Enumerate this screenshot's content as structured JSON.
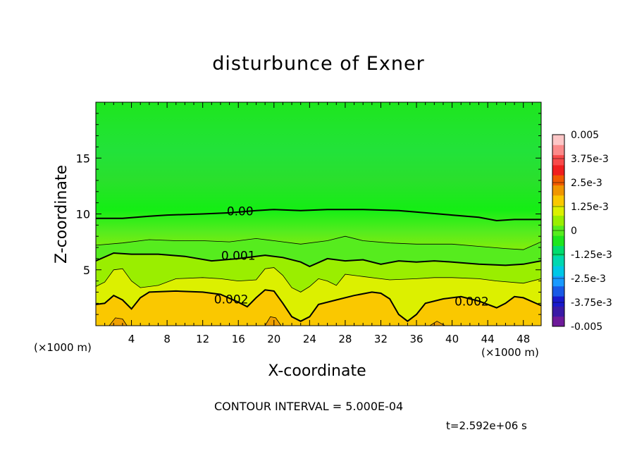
{
  "chart_data": {
    "type": "heatmap",
    "title": "disturbunce of Exner",
    "xlabel": "X-coordinate",
    "ylabel": "Z-coordinate",
    "x_unit_label_left": "(×1000 m)",
    "x_unit_label_right": "(×1000 m)",
    "xlim": [
      0,
      50
    ],
    "ylim": [
      0,
      20
    ],
    "x_ticks": [
      4,
      8,
      12,
      16,
      20,
      24,
      28,
      32,
      36,
      40,
      44,
      48
    ],
    "y_ticks": [
      5,
      10,
      15
    ],
    "contour_interval_text": "CONTOUR INTERVAL = 5.000E-04",
    "time_text": "t=2.592e+06 s",
    "colorbar": {
      "range": [
        -0.005,
        0.005
      ],
      "tick_labels": [
        "0.005",
        "3.75e-3",
        "2.5e-3",
        "1.25e-3",
        "0",
        "-1.25e-3",
        "-2.5e-3",
        "-3.75e-3",
        "-0.005"
      ],
      "colors": [
        "#6e1a9a",
        "#3a1aa6",
        "#1a1acc",
        "#1a5ae6",
        "#1a9aff",
        "#00c8e6",
        "#00d8b0",
        "#00dc6e",
        "#1ee61e",
        "#56ec1e",
        "#9aee00",
        "#dcf000",
        "#fac800",
        "#f09600",
        "#f05a00",
        "#f01e1e",
        "#f84a4a",
        "#fb8a8a",
        "#fdc6c6"
      ]
    },
    "contour_labels": [
      {
        "text": "0.00",
        "x": 16.2,
        "z": 10.2
      },
      {
        "text": "0.001",
        "x": 16.0,
        "z": 6.2
      },
      {
        "text": "0.002",
        "x": 15.2,
        "z": 2.3
      },
      {
        "text": "0.002",
        "x": 42.2,
        "z": 2.1
      }
    ],
    "contours": [
      {
        "level": 0.0,
        "major": true,
        "points": [
          [
            0,
            9.6
          ],
          [
            3,
            9.6
          ],
          [
            6,
            9.8
          ],
          [
            8,
            9.9
          ],
          [
            12,
            10.0
          ],
          [
            15,
            10.1
          ],
          [
            18,
            10.3
          ],
          [
            20,
            10.4
          ],
          [
            23,
            10.3
          ],
          [
            26,
            10.4
          ],
          [
            30,
            10.4
          ],
          [
            34,
            10.3
          ],
          [
            37,
            10.1
          ],
          [
            40,
            9.9
          ],
          [
            43,
            9.7
          ],
          [
            45,
            9.4
          ],
          [
            47,
            9.5
          ],
          [
            50,
            9.5
          ]
        ]
      },
      {
        "level": 0.0005,
        "major": false,
        "points": [
          [
            0,
            7.2
          ],
          [
            3,
            7.4
          ],
          [
            6,
            7.7
          ],
          [
            9,
            7.6
          ],
          [
            12,
            7.6
          ],
          [
            15,
            7.5
          ],
          [
            18,
            7.8
          ],
          [
            20,
            7.6
          ],
          [
            23,
            7.3
          ],
          [
            26,
            7.6
          ],
          [
            28,
            8.0
          ],
          [
            30,
            7.6
          ],
          [
            33,
            7.4
          ],
          [
            36,
            7.3
          ],
          [
            40,
            7.3
          ],
          [
            43,
            7.1
          ],
          [
            46,
            6.9
          ],
          [
            48,
            6.8
          ],
          [
            50,
            7.5
          ]
        ]
      },
      {
        "level": 0.001,
        "major": true,
        "points": [
          [
            0,
            5.8
          ],
          [
            2,
            6.5
          ],
          [
            4,
            6.4
          ],
          [
            7,
            6.4
          ],
          [
            10,
            6.2
          ],
          [
            13,
            5.8
          ],
          [
            16,
            6.0
          ],
          [
            19,
            6.3
          ],
          [
            21,
            6.1
          ],
          [
            23,
            5.7
          ],
          [
            24,
            5.3
          ],
          [
            26,
            6.0
          ],
          [
            28,
            5.8
          ],
          [
            30,
            5.9
          ],
          [
            32,
            5.5
          ],
          [
            34,
            5.8
          ],
          [
            36,
            5.7
          ],
          [
            38,
            5.8
          ],
          [
            40,
            5.7
          ],
          [
            43,
            5.5
          ],
          [
            46,
            5.4
          ],
          [
            48,
            5.5
          ],
          [
            50,
            5.8
          ]
        ]
      },
      {
        "level": 0.0015,
        "major": false,
        "points": [
          [
            0,
            3.5
          ],
          [
            1,
            3.9
          ],
          [
            2,
            5.0
          ],
          [
            3,
            5.1
          ],
          [
            4,
            4.0
          ],
          [
            5,
            3.4
          ],
          [
            7,
            3.6
          ],
          [
            9,
            4.2
          ],
          [
            12,
            4.3
          ],
          [
            14,
            4.2
          ],
          [
            16,
            4.0
          ],
          [
            18,
            4.1
          ],
          [
            19,
            5.1
          ],
          [
            20,
            5.2
          ],
          [
            21,
            4.5
          ],
          [
            22,
            3.4
          ],
          [
            23,
            3.0
          ],
          [
            24,
            3.5
          ],
          [
            25,
            4.2
          ],
          [
            26,
            4.0
          ],
          [
            27,
            3.6
          ],
          [
            28,
            4.6
          ],
          [
            30,
            4.4
          ],
          [
            33,
            4.1
          ],
          [
            36,
            4.2
          ],
          [
            38,
            4.3
          ],
          [
            40,
            4.3
          ],
          [
            43,
            4.2
          ],
          [
            45,
            4.0
          ],
          [
            48,
            3.8
          ],
          [
            50,
            4.2
          ]
        ]
      },
      {
        "level": 0.002,
        "major": true,
        "points": [
          [
            0,
            1.9
          ],
          [
            1,
            2.0
          ],
          [
            2,
            2.7
          ],
          [
            3,
            2.3
          ],
          [
            4,
            1.5
          ],
          [
            5,
            2.5
          ],
          [
            6,
            3.0
          ],
          [
            9,
            3.1
          ],
          [
            12,
            3.0
          ],
          [
            14,
            2.8
          ],
          [
            16,
            2.1
          ],
          [
            17,
            1.7
          ],
          [
            18,
            2.5
          ],
          [
            19,
            3.2
          ],
          [
            20,
            3.1
          ],
          [
            21,
            2.0
          ],
          [
            22,
            0.8
          ],
          [
            23,
            0.4
          ],
          [
            24,
            0.8
          ],
          [
            25,
            1.9
          ],
          [
            27,
            2.3
          ],
          [
            29,
            2.7
          ],
          [
            31,
            3.0
          ],
          [
            32,
            2.9
          ],
          [
            33,
            2.4
          ],
          [
            34,
            1.0
          ],
          [
            35,
            0.4
          ],
          [
            36,
            1.0
          ],
          [
            37,
            2.0
          ],
          [
            39,
            2.4
          ],
          [
            41,
            2.6
          ],
          [
            43,
            2.2
          ],
          [
            45,
            1.6
          ],
          [
            46,
            2.0
          ],
          [
            47,
            2.6
          ],
          [
            48,
            2.5
          ],
          [
            50,
            1.8
          ]
        ]
      },
      {
        "level": 0.0025,
        "major": false,
        "points": [
          [
            1.5,
            0
          ],
          [
            2.2,
            0.7
          ],
          [
            3,
            0.6
          ],
          [
            3.5,
            0
          ]
        ]
      },
      {
        "level": 0.0025,
        "major": false,
        "points": [
          [
            19,
            0
          ],
          [
            19.6,
            0.8
          ],
          [
            20.2,
            0.7
          ],
          [
            20.8,
            0
          ]
        ]
      },
      {
        "level": 0.0025,
        "major": false,
        "points": [
          [
            37.5,
            0
          ],
          [
            38.3,
            0.4
          ],
          [
            39.2,
            0
          ]
        ]
      }
    ]
  }
}
